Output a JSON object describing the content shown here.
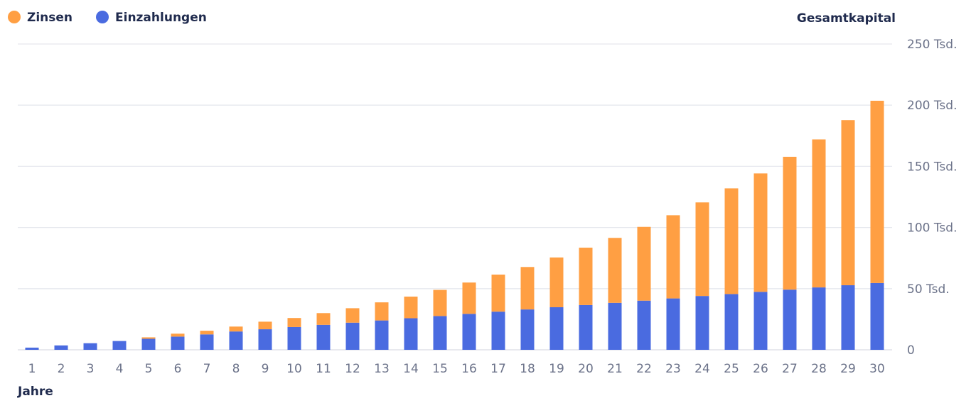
{
  "chart_data": {
    "type": "bar",
    "stacked": true,
    "legend_position": "top-left",
    "grid": true,
    "y_axis_position": "right",
    "xlabel": "Jahre",
    "ylabel": "Gesamtkapital",
    "ylim": [
      0,
      250000
    ],
    "y_ticks": [
      {
        "value": 0,
        "label": "0"
      },
      {
        "value": 50000,
        "label": "50 Tsd."
      },
      {
        "value": 100000,
        "label": "100 Tsd."
      },
      {
        "value": 150000,
        "label": "150 Tsd."
      },
      {
        "value": 200000,
        "label": "200 Tsd."
      },
      {
        "value": 250000,
        "label": "250 Tsd."
      }
    ],
    "categories": [
      "1",
      "2",
      "3",
      "4",
      "5",
      "6",
      "7",
      "8",
      "9",
      "10",
      "11",
      "12",
      "13",
      "14",
      "15",
      "16",
      "17",
      "18",
      "19",
      "20",
      "21",
      "22",
      "23",
      "24",
      "25",
      "26",
      "27",
      "28",
      "29",
      "30"
    ],
    "series": [
      {
        "name": "Einzahlungen",
        "color": "#4a6be0",
        "values": [
          1800,
          3600,
          5400,
          7200,
          9000,
          10800,
          12600,
          15000,
          16800,
          18600,
          20400,
          22200,
          24000,
          25800,
          27600,
          29400,
          31200,
          33000,
          34800,
          36600,
          38400,
          40200,
          42000,
          44000,
          45600,
          47400,
          49200,
          51000,
          52800,
          54600
        ]
      },
      {
        "name": "Zinsen",
        "color": "#ff9f43",
        "values": [
          0,
          0,
          0,
          0,
          1200,
          2400,
          3000,
          4000,
          6200,
          7400,
          9600,
          11800,
          14800,
          17700,
          21400,
          25600,
          30300,
          34700,
          40700,
          46900,
          53100,
          60300,
          68000,
          76500,
          86400,
          96800,
          108600,
          121000,
          135000,
          149000
        ]
      }
    ]
  }
}
